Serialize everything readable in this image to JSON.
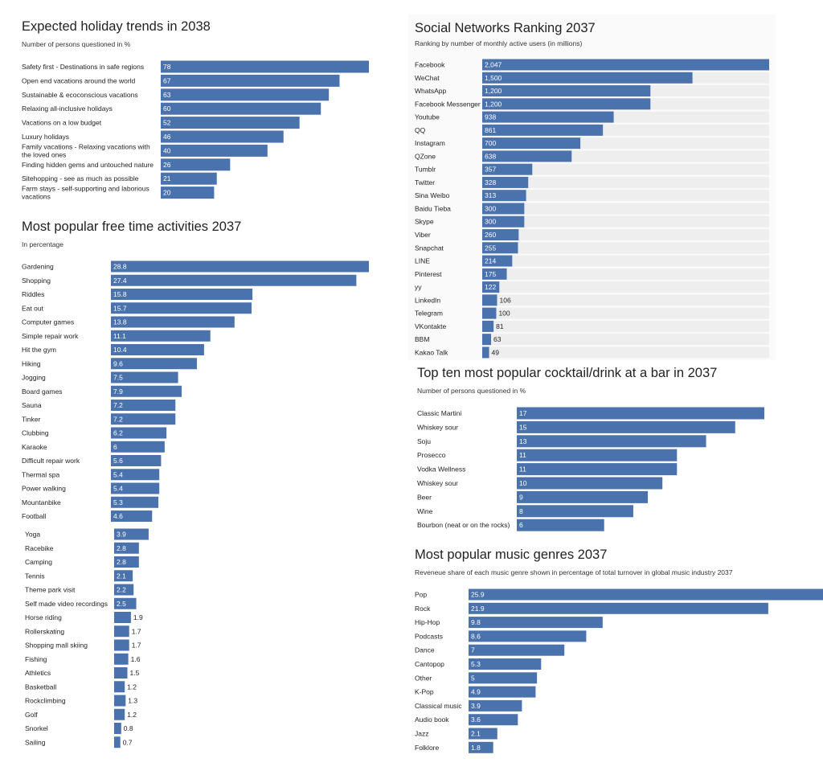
{
  "chart_data": [
    {
      "id": "holiday",
      "type": "bar",
      "orientation": "horizontal",
      "title": "Expected holiday trends in 2038",
      "subtitle": "Number of persons questioned in %",
      "categories": [
        [
          "Safety first - Destinations in safe regions"
        ],
        [
          "Open end vacations around the world"
        ],
        [
          "Sustainable & ecoconscious vacations"
        ],
        [
          "Relaxing all-inclusive holidays"
        ],
        [
          "Vacations on a low budget"
        ],
        [
          "Luxury holidays"
        ],
        [
          "Family vacations - Relaxing vacations with",
          "the loved ones"
        ],
        [
          "Finding hidden gems and untouched nature"
        ],
        [
          "Sitehopping - see as much as possible"
        ],
        [
          "Farm stays - self-supporting and laborious",
          "vacations"
        ]
      ],
      "values": [
        78,
        67,
        63,
        60,
        52,
        46,
        40,
        26,
        21,
        20
      ],
      "value_labels": [
        "78",
        "67",
        "63",
        "60",
        "52",
        "46",
        "40",
        "26",
        "21",
        "20"
      ],
      "xlim": [
        0,
        78
      ],
      "grid": false,
      "colors": {
        "bar": "#4a72ad",
        "label_inside": "#ffffff",
        "label_outside": "#222222"
      }
    },
    {
      "id": "activities",
      "type": "bar",
      "orientation": "horizontal",
      "title": "Most popular free time activities 2037",
      "subtitle": "In percentage",
      "categories": [
        [
          "Gardening"
        ],
        [
          "Shopping"
        ],
        [
          "Riddles"
        ],
        [
          "Eat out"
        ],
        [
          "Computer games"
        ],
        [
          "Simple repair work"
        ],
        [
          "Hit the gym"
        ],
        [
          "Hiking"
        ],
        [
          "Jogging"
        ],
        [
          "Board games"
        ],
        [
          "Sauna"
        ],
        [
          "Tinker"
        ],
        [
          "Clubbing"
        ],
        [
          "Karaoke"
        ],
        [
          "Difficult repair work"
        ],
        [
          "Thermal spa"
        ],
        [
          "Power walking"
        ],
        [
          "Mountanbike"
        ],
        [
          "Football"
        ],
        [
          "Yoga"
        ],
        [
          "Racebike"
        ],
        [
          "Camping"
        ],
        [
          "Tennis"
        ],
        [
          "Theme park visit"
        ],
        [
          "Self made video recordings"
        ],
        [
          "Horse riding"
        ],
        [
          "Rollerskating"
        ],
        [
          "Shopping mall skiing"
        ],
        [
          "Fishing"
        ],
        [
          "Athletics"
        ],
        [
          "Basketball"
        ],
        [
          "Rockclimbing"
        ],
        [
          "Golf"
        ],
        [
          "Snorkel"
        ],
        [
          "Sailing"
        ]
      ],
      "values": [
        28.8,
        27.4,
        15.8,
        15.7,
        13.8,
        11.1,
        10.4,
        9.6,
        7.5,
        7.9,
        7.2,
        7.2,
        6.2,
        6,
        5.6,
        5.4,
        5.4,
        5.3,
        4.6,
        3.9,
        2.8,
        2.8,
        2.1,
        2.2,
        2.5,
        1.9,
        1.7,
        1.7,
        1.6,
        1.5,
        1.2,
        1.3,
        1.2,
        0.8,
        0.7
      ],
      "value_labels": [
        "28.8",
        "27.4",
        "15.8",
        "15.7",
        "13.8",
        "11.1",
        "10.4",
        "9.6",
        "7.5",
        "7.9",
        "7.2",
        "7.2",
        "6.2",
        "6",
        "5.6",
        "5.4",
        "5.4",
        "5.3",
        "4.6",
        "3.9",
        "2.8",
        "2.8",
        "2.1",
        "2.2",
        "2.5",
        "1.9",
        "1.7",
        "1.7",
        "1.6",
        "1.5",
        "1.2",
        "1.3",
        "1.2",
        "0.8",
        "0.7"
      ],
      "xlim": [
        0,
        28.8
      ],
      "grid": false,
      "colors": {
        "bar": "#4a72ad",
        "label_inside": "#ffffff",
        "label_outside": "#222222"
      }
    },
    {
      "id": "social",
      "type": "bar",
      "orientation": "horizontal",
      "title": "Social Networks Ranking 2037",
      "subtitle": "Ranking by number of monthly active users (in millions)",
      "categories": [
        [
          "Facebook"
        ],
        [
          "WeChat"
        ],
        [
          "WhatsApp"
        ],
        [
          "Facebook Messenger"
        ],
        [
          "Youtube"
        ],
        [
          "QQ"
        ],
        [
          "Instagram"
        ],
        [
          "QZone"
        ],
        [
          "Tumblr"
        ],
        [
          "Twitter"
        ],
        [
          "Sina Weibo"
        ],
        [
          "Baidu Tieba"
        ],
        [
          "Skype"
        ],
        [
          "Viber"
        ],
        [
          "Snapchat"
        ],
        [
          "LINE"
        ],
        [
          "Pinterest"
        ],
        [
          "yy"
        ],
        [
          "LinkedIn"
        ],
        [
          "Telegram"
        ],
        [
          "VKontakte"
        ],
        [
          "BBM"
        ],
        [
          "Kakao Talk"
        ]
      ],
      "values": [
        2047,
        1500,
        1200,
        1200,
        938,
        861,
        700,
        638,
        357,
        328,
        313,
        300,
        300,
        260,
        255,
        214,
        175,
        122,
        106,
        100,
        81,
        63,
        49
      ],
      "value_labels": [
        "2,047",
        "1,500",
        "1,200",
        "1,200",
        "938",
        "861",
        "700",
        "638",
        "357",
        "328",
        "313",
        "300",
        "300",
        "260",
        "255",
        "214",
        "175",
        "122",
        "106",
        "100",
        "81",
        "63",
        "49"
      ],
      "xlim": [
        0,
        2047
      ],
      "grid": false,
      "colors": {
        "bar": "#4a72ad",
        "track": "#eeeeee",
        "label_inside": "#ffffff",
        "label_outside": "#222222"
      }
    },
    {
      "id": "cocktail",
      "type": "bar",
      "orientation": "horizontal",
      "title": "Top ten most popular cocktail/drink at a bar in 2037",
      "subtitle": "Number of persons questioned in %",
      "categories": [
        [
          "Classic Martini"
        ],
        [
          "Whiskey sour"
        ],
        [
          "Soju"
        ],
        [
          "Prosecco"
        ],
        [
          "Vodka Wellness"
        ],
        [
          "Whiskey sour"
        ],
        [
          "Beer"
        ],
        [
          "Wine"
        ],
        [
          "Bourbon (neat or on the rocks)"
        ]
      ],
      "values": [
        17,
        15,
        13,
        11,
        11,
        10,
        9,
        8,
        6
      ],
      "value_labels": [
        "17",
        "15",
        "13",
        "11",
        "11",
        "10",
        "9",
        "8",
        "6"
      ],
      "xlim": [
        0,
        17
      ],
      "grid": false,
      "colors": {
        "bar": "#4a72ad",
        "label_inside": "#ffffff",
        "label_outside": "#222222"
      }
    },
    {
      "id": "music",
      "type": "bar",
      "orientation": "horizontal",
      "title": "Most popular music genres 2037",
      "subtitle": "Reveneue share of each music genre shown in percentage of total turnover in global music industry 2037",
      "categories": [
        [
          "Pop"
        ],
        [
          "Rock"
        ],
        [
          "Hip-Hop"
        ],
        [
          "Podcasts"
        ],
        [
          "Dance"
        ],
        [
          "Cantopop"
        ],
        [
          "Other"
        ],
        [
          "K-Pop"
        ],
        [
          "Classical music"
        ],
        [
          "Audio book"
        ],
        [
          "Jazz"
        ],
        [
          "Folklore"
        ]
      ],
      "values": [
        25.9,
        21.9,
        9.8,
        8.6,
        7,
        5.3,
        5,
        4.9,
        3.9,
        3.6,
        2.1,
        1.8
      ],
      "value_labels": [
        "25.9",
        "21.9",
        "9.8",
        "8.6",
        "7",
        "5.3",
        "5",
        "4.9",
        "3.9",
        "3.6",
        "2.1",
        "1.8"
      ],
      "xlim": [
        0,
        25.9
      ],
      "grid": false,
      "colors": {
        "bar": "#4a72ad",
        "label_inside": "#ffffff",
        "label_outside": "#222222"
      }
    }
  ]
}
